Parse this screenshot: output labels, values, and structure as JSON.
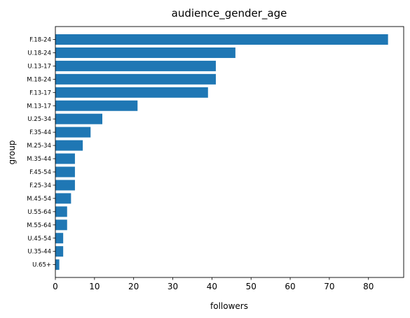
{
  "chart_data": {
    "type": "bar",
    "orientation": "horizontal",
    "title": "audience_gender_age",
    "xlabel": "followers",
    "ylabel": "group",
    "xlim": [
      0,
      89
    ],
    "xticks": [
      0,
      10,
      20,
      30,
      40,
      50,
      60,
      70,
      80
    ],
    "grid": false,
    "bar_color": "#1f77b4",
    "categories": [
      "F.18-24",
      "U.18-24",
      "U.13-17",
      "M.18-24",
      "F.13-17",
      "M.13-17",
      "U.25-34",
      "F.35-44",
      "M.25-34",
      "M.35-44",
      "F.45-54",
      "F.25-34",
      "M.45-54",
      "U.55-64",
      "M.55-64",
      "U.45-54",
      "U.35-44",
      "U.65+"
    ],
    "values": [
      85,
      46,
      41,
      41,
      39,
      21,
      12,
      9,
      7,
      5,
      5,
      5,
      4,
      3,
      3,
      2,
      2,
      1
    ]
  }
}
